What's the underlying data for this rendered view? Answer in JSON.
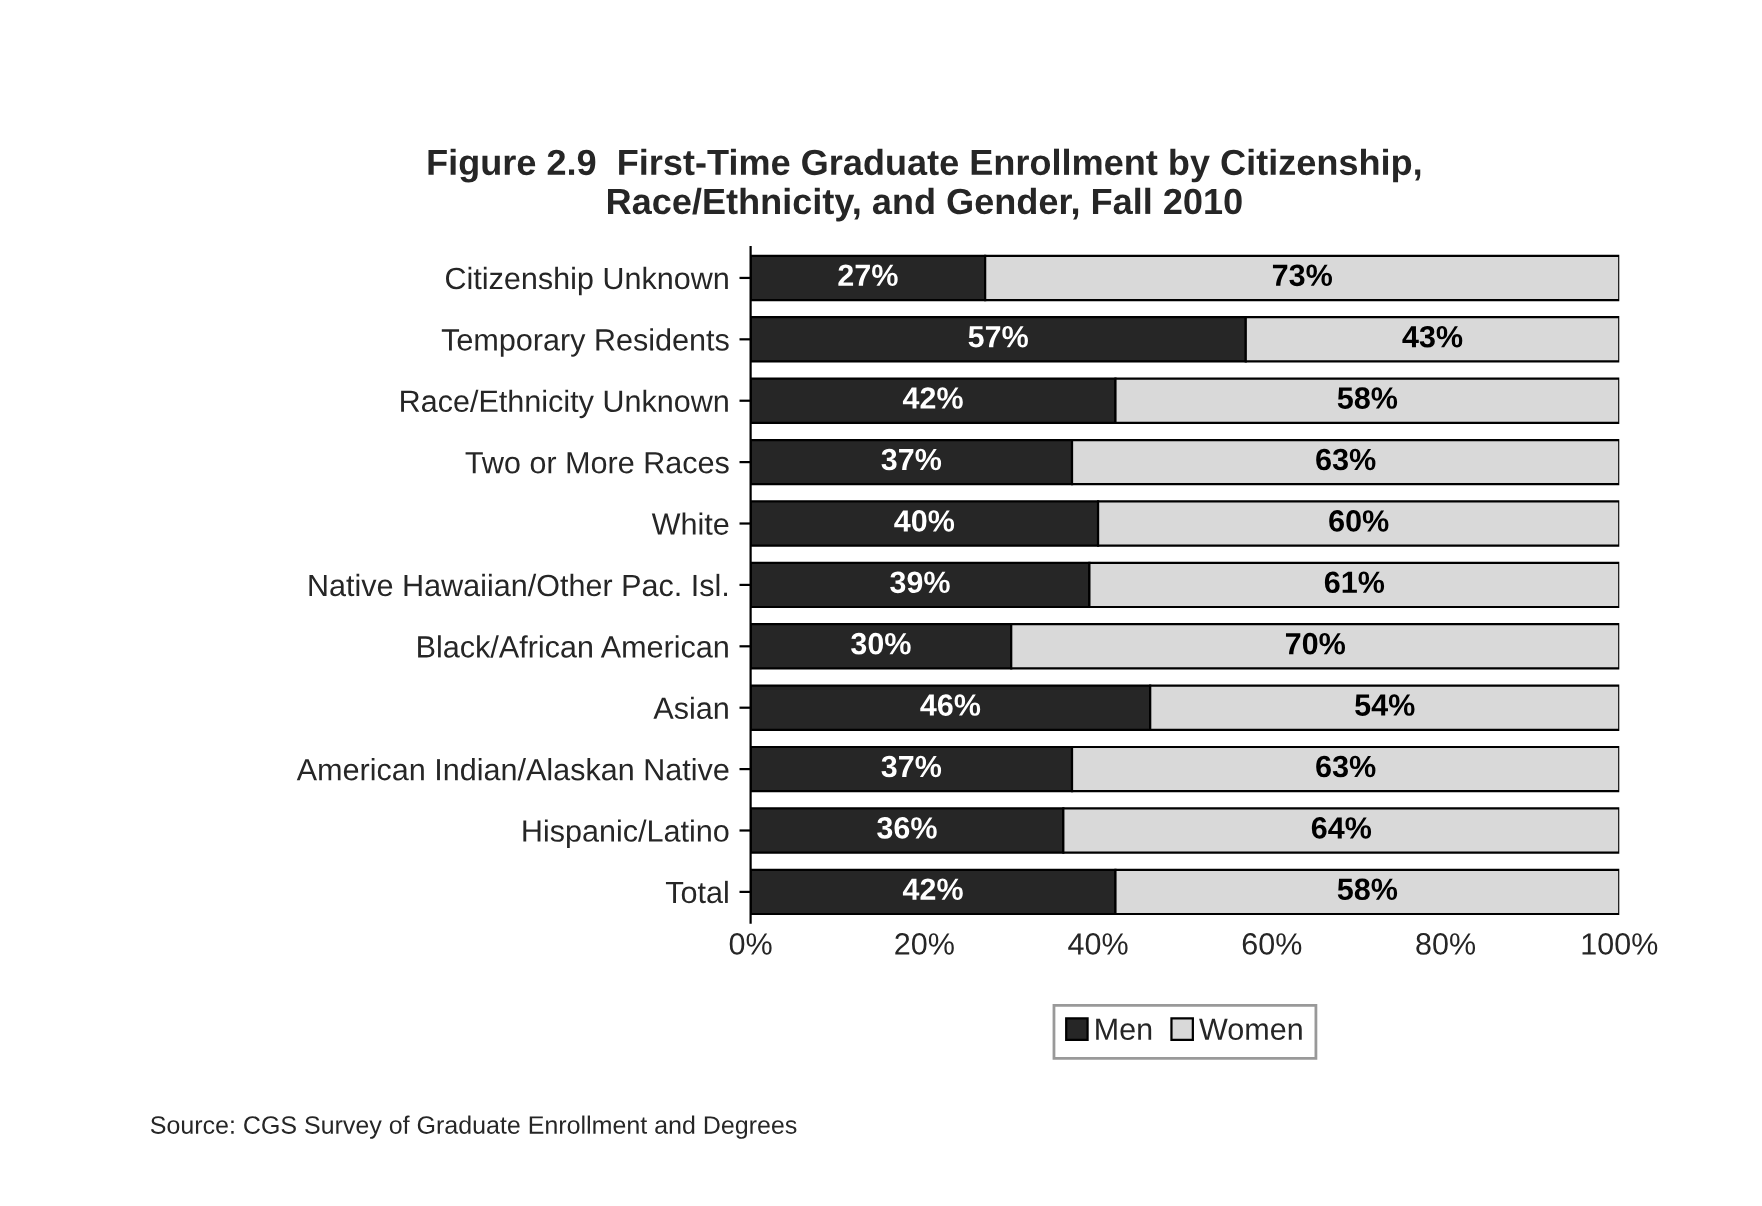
{
  "chart_data": {
    "type": "bar",
    "orientation": "horizontal",
    "stacked": true,
    "title": "Figure 2.9  First-Time Graduate Enrollment by Citizenship,\nRace/Ethnicity, and Gender, Fall 2010",
    "categories": [
      "Citizenship Unknown",
      "Temporary Residents",
      "Race/Ethnicity Unknown",
      "Two or More Races",
      "White",
      "Native Hawaiian/Other Pac. Isl.",
      "Black/African American",
      "Asian",
      "American Indian/Alaskan Native",
      "Hispanic/Latino",
      "Total"
    ],
    "series": [
      {
        "name": "Men",
        "color": "#262626",
        "values": [
          27,
          57,
          42,
          37,
          40,
          39,
          30,
          46,
          37,
          36,
          42
        ],
        "value_labels": [
          "27%",
          "57%",
          "42%",
          "37%",
          "40%",
          "39%",
          "30%",
          "46%",
          "37%",
          "36%",
          "42%"
        ]
      },
      {
        "name": "Women",
        "color": "#d9d9d9",
        "values": [
          73,
          43,
          58,
          63,
          60,
          61,
          70,
          54,
          63,
          64,
          58
        ],
        "value_labels": [
          "73%",
          "43%",
          "58%",
          "63%",
          "60%",
          "61%",
          "70%",
          "54%",
          "63%",
          "64%",
          "58%"
        ]
      }
    ],
    "xlim": [
      0,
      100
    ],
    "xticks": [
      {
        "value": 0,
        "label": "0%"
      },
      {
        "value": 20,
        "label": "20%"
      },
      {
        "value": 40,
        "label": "40%"
      },
      {
        "value": 60,
        "label": "60%"
      },
      {
        "value": 80,
        "label": "80%"
      },
      {
        "value": 100,
        "label": "100%"
      }
    ],
    "legend": "bottom",
    "grid": false,
    "annotations": [
      "Source: CGS Survey of Graduate Enrollment and Degrees"
    ]
  }
}
